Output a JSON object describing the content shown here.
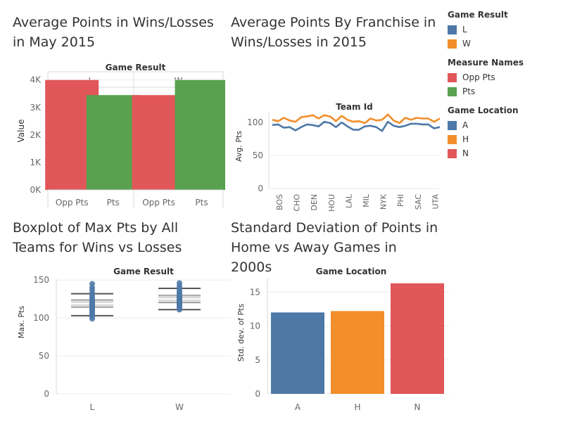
{
  "titles": {
    "t1": "Average Points in Wins/Losses in May 2015",
    "t2": "Average Points By Franchise in Wins/Losses in 2015",
    "t3": "Boxplot of Max Pts by All Teams for Wins vs Losses",
    "t4": "Standard Deviation of Points in Home vs Away Games in 2000s"
  },
  "colors": {
    "L": "#4e79a7",
    "W": "#f28e2b",
    "A": "#4e79a7",
    "H": "#f28e2b",
    "N": "#e15759",
    "opp_pts": "#e15759",
    "pts": "#59a14f"
  },
  "legend": [
    {
      "title": "Game Result",
      "items": [
        {
          "label": "L",
          "color": "#4e79a7"
        },
        {
          "label": "W",
          "color": "#f28e2b"
        }
      ]
    },
    {
      "title": "Measure Names",
      "items": [
        {
          "label": "Opp Pts",
          "color": "#e15759"
        },
        {
          "label": "Pts",
          "color": "#59a14f"
        }
      ]
    },
    {
      "title": "Game Location",
      "items": [
        {
          "label": "A",
          "color": "#4e79a7"
        },
        {
          "label": "H",
          "color": "#f28e2b"
        },
        {
          "label": "N",
          "color": "#e15759"
        }
      ]
    }
  ],
  "chart_data": [
    {
      "type": "bar",
      "header": "Game Result",
      "panels": [
        "L",
        "W"
      ],
      "categories": [
        "Opp Pts",
        "Pts"
      ],
      "values": {
        "L": [
          4000,
          3450
        ],
        "W": [
          3450,
          4000
        ]
      },
      "ylabel": "Value",
      "yticks": [
        "0K",
        "1K",
        "2K",
        "3K",
        "4K"
      ],
      "ylim": [
        0,
        4300
      ]
    },
    {
      "type": "line",
      "header": "Team Id",
      "ylabel": "Avg. Pts",
      "ylim": [
        0,
        115
      ],
      "yticks": [
        0,
        50,
        100
      ],
      "xticks": [
        "BOS",
        "CHO",
        "DEN",
        "HOU",
        "LAL",
        "MIL",
        "NYK",
        "PHI",
        "SAC",
        "UTA"
      ],
      "series": [
        {
          "name": "L",
          "values": [
            96,
            97,
            92,
            93,
            88,
            93,
            97,
            96,
            94,
            101,
            99,
            93,
            100,
            94,
            89,
            89,
            94,
            95,
            93,
            87,
            101,
            95,
            93,
            95,
            98,
            98,
            97,
            97,
            91,
            93
          ]
        },
        {
          "name": "W",
          "values": [
            104,
            102,
            107,
            103,
            101,
            108,
            109,
            111,
            106,
            111,
            109,
            102,
            110,
            104,
            101,
            102,
            99,
            106,
            103,
            104,
            112,
            103,
            99,
            107,
            104,
            107,
            106,
            106,
            101,
            106
          ]
        }
      ]
    },
    {
      "type": "box",
      "header": "Game Result",
      "ylabel": "Max. Pts",
      "ylim": [
        0,
        152
      ],
      "yticks": [
        0,
        50,
        100,
        150
      ],
      "categories": [
        "L",
        "W"
      ],
      "boxes": [
        {
          "name": "L",
          "whisker_low": 103,
          "q1": 114,
          "median": 119,
          "q3": 124,
          "whisker_high": 132,
          "points": [
            99,
            102,
            104,
            106,
            108,
            110,
            112,
            113,
            114,
            115,
            116,
            117,
            118,
            119,
            120,
            121,
            122,
            123,
            125,
            127,
            130,
            133,
            137,
            140,
            145
          ]
        },
        {
          "name": "W",
          "whisker_low": 111,
          "q1": 120,
          "median": 125,
          "q3": 130,
          "whisker_high": 139,
          "points": [
            111,
            113,
            115,
            116,
            118,
            119,
            120,
            121,
            122,
            123,
            124,
            125,
            126,
            127,
            128,
            129,
            130,
            132,
            134,
            136,
            139,
            142,
            146
          ]
        }
      ]
    },
    {
      "type": "bar",
      "header": "Game Location",
      "ylabel": "Std. dev. of Pts",
      "ylim": [
        0,
        17
      ],
      "yticks": [
        0,
        5,
        10,
        15
      ],
      "categories": [
        "A",
        "H",
        "N"
      ],
      "values": [
        12.0,
        12.2,
        16.3
      ]
    }
  ]
}
